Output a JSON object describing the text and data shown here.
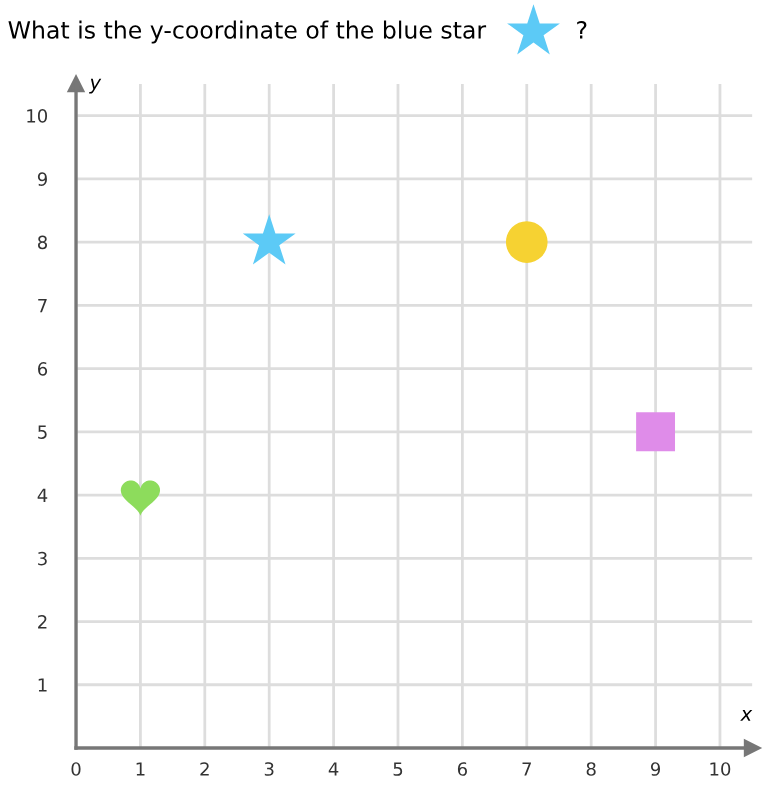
{
  "chart_data": {
    "type": "scatter",
    "title": "What is the y-coordinate of the blue star",
    "annotations": [
      "?"
    ],
    "xlabel": "x",
    "ylabel": "y",
    "series": [
      {
        "color": "#8ddc5c",
        "x": [
          1
        ],
        "values": [
          4
        ]
      },
      {
        "color": "#5ccaf6",
        "marker": "star",
        "x": [
          3
        ],
        "values": [
          8
        ]
      },
      {
        "color": "#f6d232",
        "marker": "circle",
        "x": [
          7
        ],
        "values": [
          8
        ]
      },
      {
        "color": "#df8ce9",
        "marker": "square",
        "x": [
          9
        ],
        "values": [
          5
        ]
      }
    ],
    "xlim": [
      0,
      10.5
    ],
    "ylim": [
      0,
      10.5
    ],
    "xticks": [
      0,
      1,
      2,
      3,
      4,
      5,
      6,
      7,
      8,
      9,
      10
    ],
    "yticks": [
      1,
      2,
      3,
      4,
      5,
      6,
      7,
      8,
      9,
      10
    ],
    "grid": true
  }
}
